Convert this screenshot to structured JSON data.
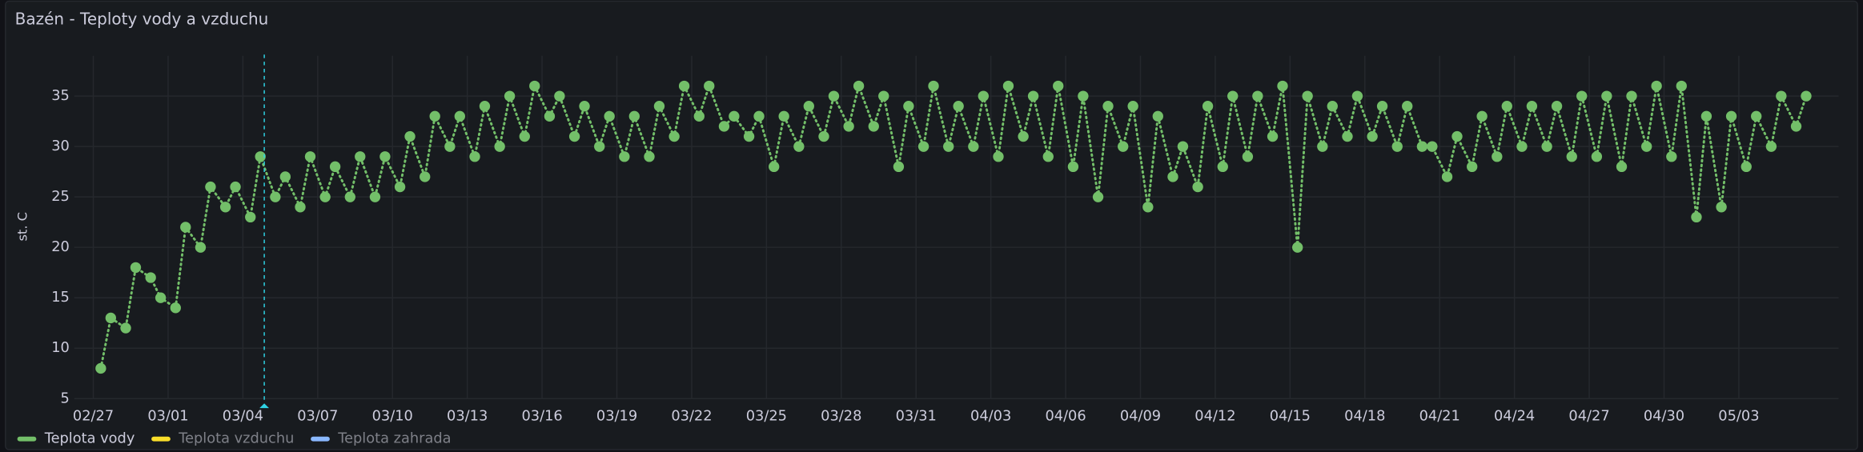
{
  "chart_data": {
    "type": "scatter",
    "title": "Bazén - Teploty vody a vzduchu",
    "y_label": "st. C",
    "ylim": [
      5,
      39
    ],
    "yticks": [
      5,
      10,
      15,
      20,
      25,
      30,
      35
    ],
    "xticks": [
      "02/27",
      "03/01",
      "03/04",
      "03/07",
      "03/10",
      "03/13",
      "03/16",
      "03/19",
      "03/22",
      "03/25",
      "03/28",
      "03/31",
      "04/03",
      "04/06",
      "04/09",
      "04/12",
      "04/15",
      "04/18",
      "04/21",
      "04/24",
      "04/27",
      "04/30",
      "05/03"
    ],
    "grid": true,
    "legend": "bottom-left",
    "x": [
      "02/27",
      "02/27",
      "02/28",
      "02/28",
      "02/29",
      "02/29",
      "03/01",
      "03/01",
      "03/02",
      "03/02",
      "03/03",
      "03/03",
      "03/04",
      "03/04",
      "03/05",
      "03/05",
      "03/06",
      "03/06",
      "03/07",
      "03/07",
      "03/08",
      "03/08",
      "03/09",
      "03/09",
      "03/10",
      "03/10",
      "03/11",
      "03/11",
      "03/12",
      "03/12",
      "03/13",
      "03/13",
      "03/14",
      "03/14",
      "03/15",
      "03/15",
      "03/16",
      "03/16",
      "03/17",
      "03/17",
      "03/18",
      "03/18",
      "03/19",
      "03/19",
      "03/20",
      "03/20",
      "03/21",
      "03/21",
      "03/22",
      "03/22",
      "03/23",
      "03/23",
      "03/24",
      "03/24",
      "03/25",
      "03/25",
      "03/26",
      "03/26",
      "03/27",
      "03/27",
      "03/28",
      "03/28",
      "03/29",
      "03/29",
      "03/30",
      "03/30",
      "03/31",
      "03/31",
      "04/01",
      "04/01",
      "04/02",
      "04/02",
      "04/03",
      "04/03",
      "04/04",
      "04/04",
      "04/05",
      "04/05",
      "04/06",
      "04/06",
      "04/07",
      "04/07",
      "04/08",
      "04/08",
      "04/09",
      "04/09",
      "04/10",
      "04/10",
      "04/11",
      "04/11",
      "04/12",
      "04/12",
      "04/13",
      "04/13",
      "04/14",
      "04/14",
      "04/15",
      "04/15",
      "04/16",
      "04/16",
      "04/17",
      "04/17",
      "04/18",
      "04/18",
      "04/19",
      "04/19",
      "04/20",
      "04/20",
      "04/21",
      "04/21",
      "04/22",
      "04/22",
      "04/23",
      "04/23",
      "04/24",
      "04/24",
      "04/25",
      "04/25",
      "04/26",
      "04/26",
      "04/27",
      "04/27",
      "04/28",
      "04/28",
      "04/29",
      "04/29",
      "04/30",
      "04/30",
      "05/01",
      "05/01",
      "05/02",
      "05/02",
      "05/03",
      "05/03",
      "05/04",
      "05/04",
      "05/05",
      "05/05"
    ],
    "series": [
      {
        "name": "Teplota vody",
        "color": "#73bf69",
        "values": [
          8,
          13,
          12,
          18,
          17,
          15,
          14,
          22,
          20,
          26,
          24,
          26,
          23,
          29,
          25,
          27,
          24,
          29,
          25,
          28,
          25,
          29,
          25,
          29,
          26,
          31,
          27,
          33,
          30,
          33,
          29,
          34,
          30,
          35,
          31,
          36,
          33,
          35,
          31,
          34,
          30,
          33,
          29,
          33,
          29,
          34,
          31,
          36,
          33,
          36,
          32,
          33,
          31,
          33,
          28,
          33,
          30,
          34,
          31,
          35,
          32,
          36,
          32,
          35,
          28,
          34,
          30,
          36,
          30,
          34,
          30,
          35,
          29,
          36,
          31,
          35,
          29,
          36,
          28,
          35,
          25,
          34,
          30,
          34,
          24,
          33,
          27,
          30,
          26,
          34,
          28,
          35,
          29,
          35,
          31,
          36,
          20,
          35,
          30,
          34,
          31,
          35,
          31,
          34,
          30,
          34,
          30,
          30,
          27,
          31,
          28,
          33,
          29,
          34,
          30,
          34,
          30,
          34,
          29,
          35,
          29,
          35,
          28,
          35,
          30,
          36,
          29,
          36,
          23,
          33,
          24,
          33,
          28,
          33,
          30,
          35,
          32,
          35
        ]
      },
      {
        "name": "Teplota vzduchu",
        "color": "#fade2a",
        "hidden": true
      },
      {
        "name": "Teplota zahrada",
        "color": "#8ab8ff",
        "hidden": true
      }
    ]
  }
}
